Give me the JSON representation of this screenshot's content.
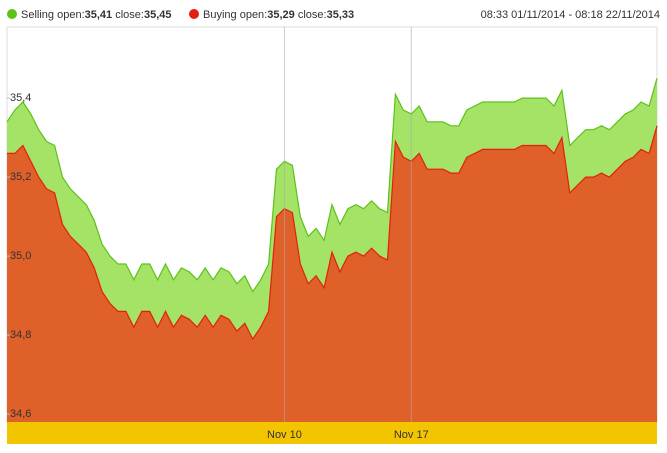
{
  "chart_data": {
    "type": "area",
    "range": "08:33 01/11/2014 - 08:18 22/11/2014",
    "categories": [
      null,
      null,
      null,
      null,
      null,
      null,
      null,
      null,
      null,
      null,
      null,
      null,
      null,
      null,
      null,
      null,
      null,
      null,
      null,
      null,
      null,
      null,
      null,
      null,
      null,
      null,
      null,
      null,
      null,
      null,
      null,
      null,
      null,
      null,
      null,
      "Nov 10",
      null,
      null,
      null,
      null,
      null,
      null,
      null,
      null,
      null,
      null,
      null,
      null,
      null,
      null,
      null,
      "Nov 17",
      null,
      null,
      null,
      null,
      null,
      null,
      null,
      null,
      null,
      null,
      null,
      null,
      null,
      null,
      null,
      null,
      null,
      null,
      null,
      null,
      null,
      null,
      null,
      null,
      null,
      null,
      null,
      null,
      null,
      null,
      null
    ],
    "series": [
      {
        "name": "Selling",
        "open_text": "open:",
        "open": {
          "value": 35.41,
          "label": "35,41"
        },
        "close_text": "close:",
        "close": {
          "value": 35.45,
          "label": "35,45"
        },
        "color": "#a4e366",
        "line_color": "#5cc21a",
        "values": [
          35.34,
          35.37,
          35.39,
          35.36,
          35.32,
          35.29,
          35.28,
          35.2,
          35.17,
          35.15,
          35.13,
          35.09,
          35.03,
          35.0,
          34.98,
          34.98,
          34.94,
          34.98,
          34.98,
          34.94,
          34.98,
          34.94,
          34.97,
          34.96,
          34.94,
          34.97,
          34.94,
          34.97,
          34.96,
          34.93,
          34.95,
          34.91,
          34.94,
          34.98,
          35.22,
          35.24,
          35.23,
          35.1,
          35.05,
          35.07,
          35.04,
          35.13,
          35.08,
          35.12,
          35.13,
          35.12,
          35.14,
          35.12,
          35.11,
          35.41,
          35.37,
          35.36,
          35.38,
          35.34,
          35.34,
          35.34,
          35.33,
          35.33,
          35.37,
          35.38,
          35.39,
          35.39,
          35.39,
          35.39,
          35.39,
          35.4,
          35.4,
          35.4,
          35.4,
          35.38,
          35.42,
          35.28,
          35.3,
          35.32,
          35.32,
          35.33,
          35.32,
          35.34,
          35.36,
          35.37,
          35.39,
          35.38,
          35.45
        ]
      },
      {
        "name": "Buying",
        "open_text": "open:",
        "open": {
          "value": 35.29,
          "label": "35,29"
        },
        "close_text": "close:",
        "close": {
          "value": 35.33,
          "label": "35,33"
        },
        "color": "#e0602a",
        "line_color": "#e3200e",
        "values": [
          35.26,
          35.26,
          35.28,
          35.24,
          35.2,
          35.17,
          35.16,
          35.08,
          35.05,
          35.03,
          35.01,
          34.97,
          34.91,
          34.88,
          34.86,
          34.86,
          34.82,
          34.86,
          34.86,
          34.82,
          34.86,
          34.82,
          34.85,
          34.84,
          34.82,
          34.85,
          34.82,
          34.85,
          34.84,
          34.81,
          34.83,
          34.79,
          34.82,
          34.86,
          35.1,
          35.12,
          35.11,
          34.98,
          34.93,
          34.95,
          34.92,
          35.01,
          34.96,
          35.0,
          35.01,
          35.0,
          35.02,
          35.0,
          34.99,
          35.29,
          35.25,
          35.24,
          35.26,
          35.22,
          35.22,
          35.22,
          35.21,
          35.21,
          35.25,
          35.26,
          35.27,
          35.27,
          35.27,
          35.27,
          35.27,
          35.28,
          35.28,
          35.28,
          35.28,
          35.26,
          35.3,
          35.16,
          35.18,
          35.2,
          35.2,
          35.21,
          35.2,
          35.22,
          35.24,
          35.25,
          35.27,
          35.26,
          35.33
        ]
      }
    ],
    "ylim": [
      34.58,
      35.58
    ],
    "yticks": [
      {
        "value": 34.6,
        "label": "34,6"
      },
      {
        "value": 34.8,
        "label": "34,8"
      },
      {
        "value": 35.0,
        "label": "35,0"
      },
      {
        "value": 35.2,
        "label": "35,2"
      },
      {
        "value": 35.4,
        "label": "35,4"
      }
    ],
    "xgrid": true,
    "axis_band_color": "#f2c500"
  }
}
